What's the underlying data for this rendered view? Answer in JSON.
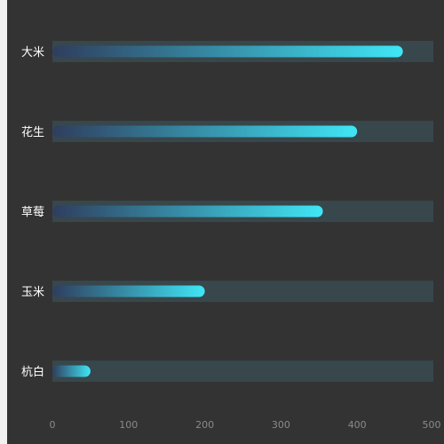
{
  "chart_data": {
    "type": "bar",
    "orientation": "horizontal",
    "categories": [
      "大米",
      "花生",
      "草莓",
      "玉米",
      "杭白"
    ],
    "values": [
      460,
      400,
      355,
      200,
      50
    ],
    "xlim": [
      0,
      500
    ],
    "xticks": [
      0,
      100,
      200,
      300,
      400,
      500
    ],
    "title": "",
    "xlabel": "",
    "ylabel": "",
    "grid": false,
    "colors": {
      "background": "#333333",
      "track": "#37474c",
      "bar_start": "#2f3d5e",
      "bar_end": "#3fe6f6",
      "label": "#ffffff",
      "tick": "#8a8a8a"
    }
  }
}
